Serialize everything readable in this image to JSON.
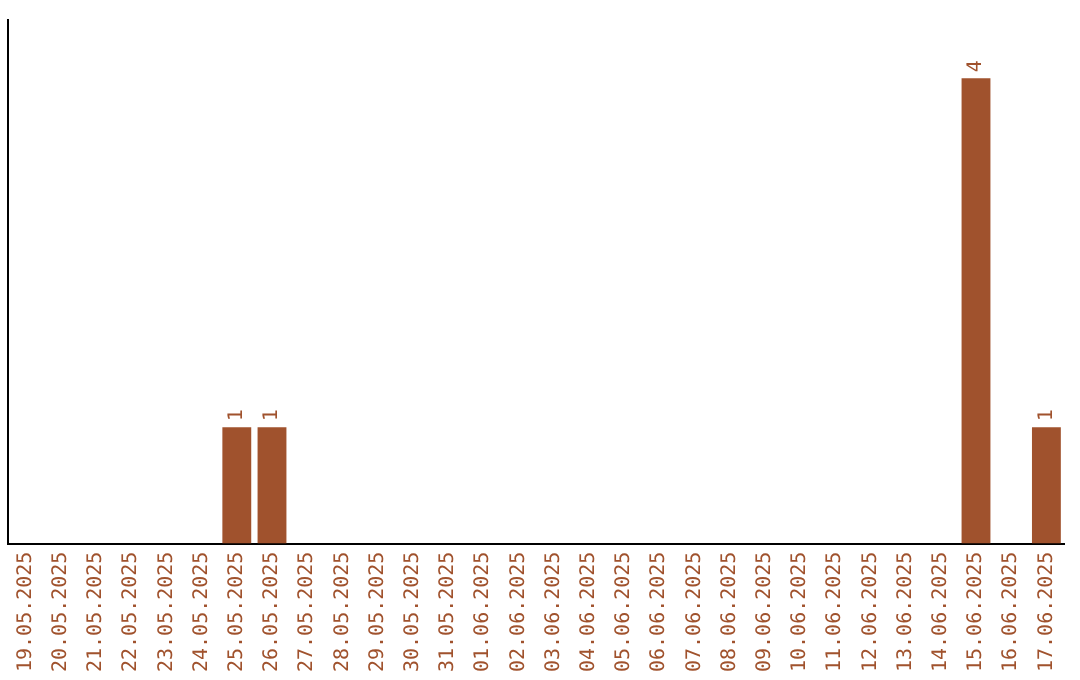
{
  "chart_data": {
    "type": "bar",
    "categories": [
      "19.05.2025",
      "20.05.2025",
      "21.05.2025",
      "22.05.2025",
      "23.05.2025",
      "24.05.2025",
      "25.05.2025",
      "26.05.2025",
      "27.05.2025",
      "28.05.2025",
      "29.05.2025",
      "30.05.2025",
      "31.05.2025",
      "01.06.2025",
      "02.06.2025",
      "03.06.2025",
      "04.06.2025",
      "05.06.2025",
      "06.06.2025",
      "07.06.2025",
      "08.06.2025",
      "09.06.2025",
      "10.06.2025",
      "11.06.2025",
      "12.06.2025",
      "13.06.2025",
      "14.06.2025",
      "15.06.2025",
      "16.06.2025",
      "17.06.2025"
    ],
    "values": [
      0,
      0,
      0,
      0,
      0,
      0,
      1,
      1,
      0,
      0,
      0,
      0,
      0,
      0,
      0,
      0,
      0,
      0,
      0,
      0,
      0,
      0,
      0,
      0,
      0,
      0,
      0,
      4,
      0,
      1
    ],
    "value_labels": [
      null,
      null,
      null,
      null,
      null,
      null,
      "1",
      "1",
      null,
      null,
      null,
      null,
      null,
      null,
      null,
      null,
      null,
      null,
      null,
      null,
      null,
      null,
      null,
      null,
      null,
      null,
      null,
      "4",
      null,
      "1"
    ],
    "color": "#a0522d",
    "grid": false,
    "legend": false
  }
}
